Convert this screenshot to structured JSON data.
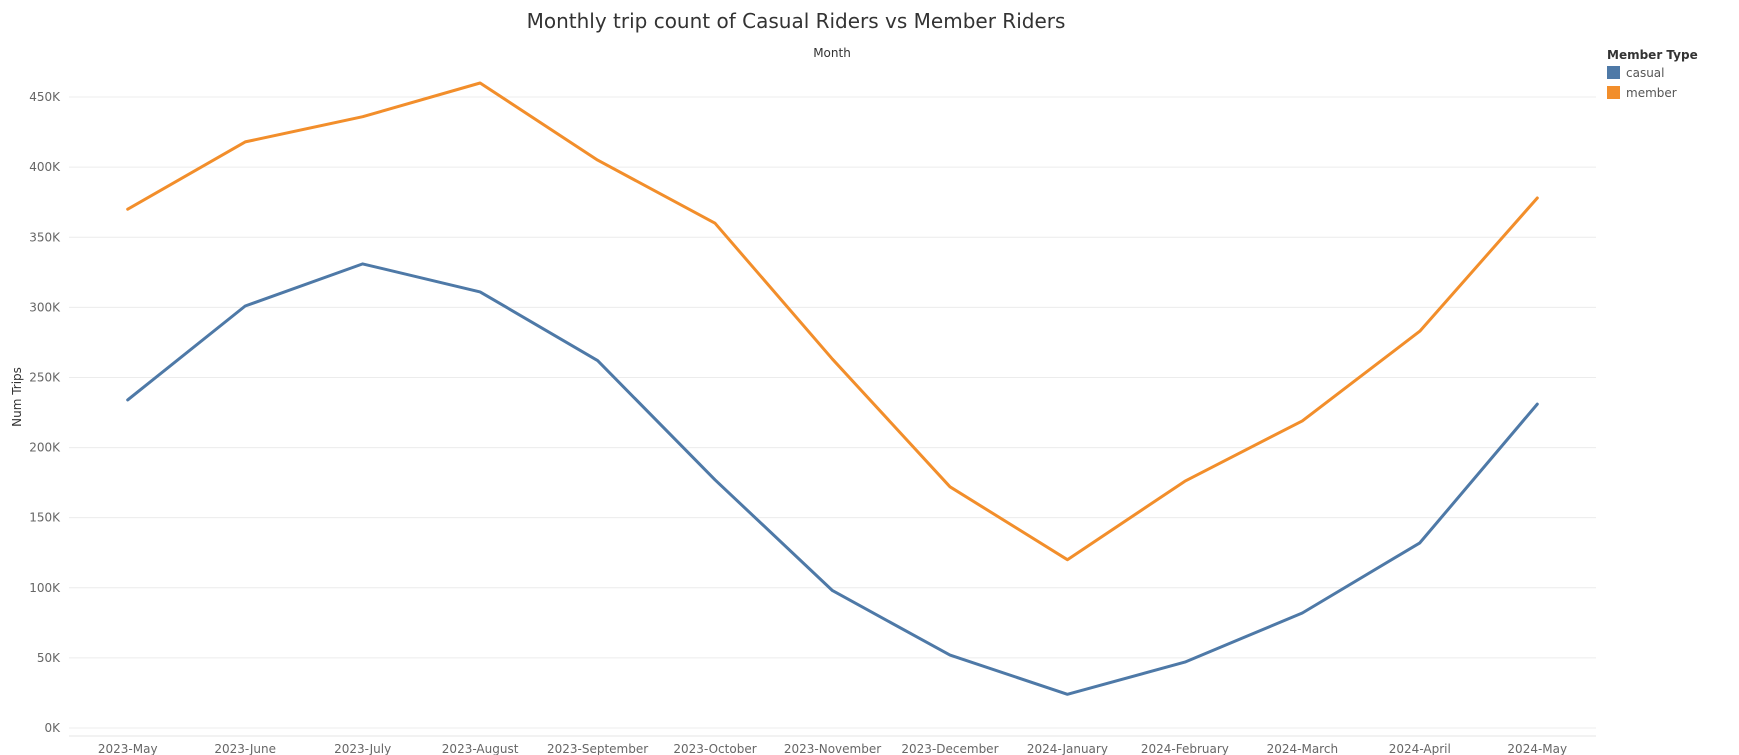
{
  "chart_data": {
    "type": "line",
    "title": "Monthly trip count of Casual Riders vs Member Riders",
    "xlabel": "Month",
    "ylabel": "Num Trips",
    "categories": [
      "2023-May",
      "2023-June",
      "2023-July",
      "2023-August",
      "2023-September",
      "2023-October",
      "2023-November",
      "2023-December",
      "2024-January",
      "2024-February",
      "2024-March",
      "2024-April",
      "2024-May"
    ],
    "ylim": [
      0,
      475000
    ],
    "yticks": [
      0,
      50000,
      100000,
      150000,
      200000,
      250000,
      300000,
      350000,
      400000,
      450000
    ],
    "ytick_labels": [
      "0K",
      "50K",
      "100K",
      "150K",
      "200K",
      "250K",
      "300K",
      "350K",
      "400K",
      "450K"
    ],
    "grid": true,
    "legend": {
      "title": "Member Type",
      "placement": "top-right"
    },
    "series": [
      {
        "name": "casual",
        "color": "#4e79a7",
        "values": [
          234000,
          301000,
          331000,
          311000,
          262000,
          177000,
          98000,
          52000,
          24000,
          47000,
          82000,
          132000,
          231000
        ]
      },
      {
        "name": "member",
        "color": "#f28e2b",
        "values": [
          370000,
          418000,
          436000,
          460000,
          405000,
          360000,
          263000,
          172000,
          120000,
          176000,
          219000,
          283000,
          378000
        ]
      }
    ]
  }
}
